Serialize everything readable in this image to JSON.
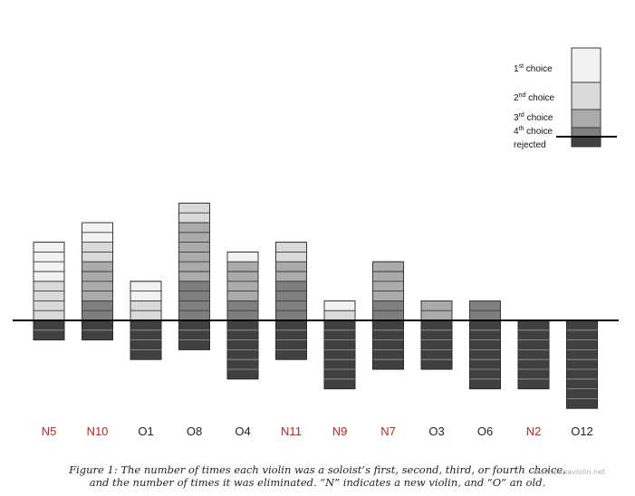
{
  "chart_data": {
    "type": "bar",
    "stacked": true,
    "categories": [
      "N5",
      "N10",
      "O1",
      "O8",
      "O4",
      "N11",
      "N9",
      "N7",
      "O3",
      "O6",
      "N2",
      "O12"
    ],
    "category_colors": [
      "#c0241c",
      "#c0241c",
      "#222222",
      "#222222",
      "#222222",
      "#c0241c",
      "#c0241c",
      "#c0241c",
      "#222222",
      "#222222",
      "#c0241c",
      "#222222"
    ],
    "series": [
      {
        "name": "1st choice",
        "sup": "st",
        "base": "1",
        "rest": " choice",
        "color": "#f2f2f2",
        "values": [
          4,
          2,
          2,
          0,
          1,
          0,
          1,
          0,
          0,
          0,
          0,
          0
        ]
      },
      {
        "name": "2nd choice",
        "sup": "nd",
        "base": "2",
        "rest": " choice",
        "color": "#d9d9d9",
        "values": [
          4,
          2,
          2,
          2,
          0,
          2,
          1,
          0,
          0,
          0,
          0,
          0
        ]
      },
      {
        "name": "3rd choice",
        "sup": "rd",
        "base": "3",
        "rest": " choice",
        "color": "#ababab",
        "values": [
          0,
          4,
          0,
          6,
          4,
          2,
          0,
          4,
          2,
          0,
          0,
          0
        ]
      },
      {
        "name": "4th choice",
        "sup": "th",
        "base": "4",
        "rest": " choice",
        "color": "#7f7f7f",
        "values": [
          0,
          2,
          0,
          4,
          2,
          4,
          0,
          2,
          0,
          2,
          0,
          0
        ]
      }
    ],
    "rejected": {
      "name": "rejected",
      "color": "#404040",
      "values": [
        2,
        2,
        4,
        3,
        6,
        4,
        7,
        5,
        5,
        7,
        7,
        9
      ]
    },
    "legend_position": "top-right",
    "grid": false
  },
  "caption": {
    "line1": "Figure 1: The number of times each violin was a soloist’s first, second, third, or fourth choice,",
    "line2": "and the number of times it was eliminated. “N” indicates a new violin, and “O” an old."
  },
  "watermark": "www.chinaviolin.net"
}
